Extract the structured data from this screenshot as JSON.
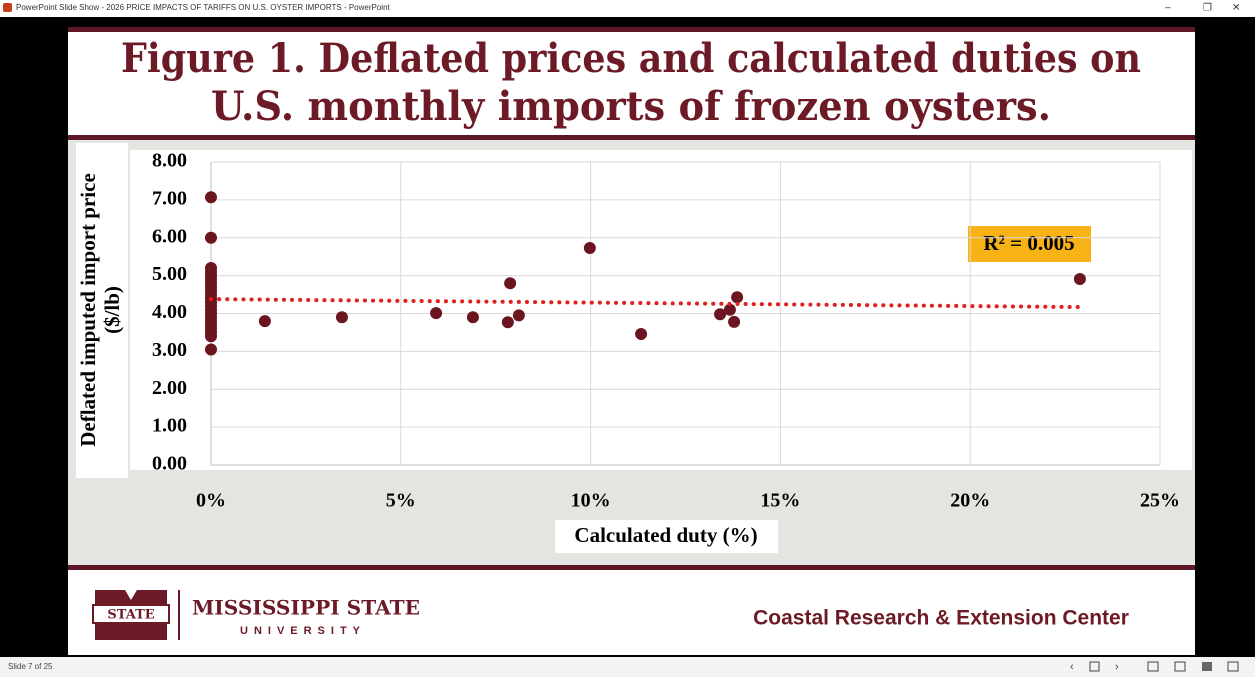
{
  "window": {
    "title": "PowerPoint Slide Show  -  2026 PRICE IMPACTS OF TARIFFS ON U.S. OYSTER IMPORTS  -  PowerPoint"
  },
  "slide": {
    "title_lines": [
      "Figure 1. Deflated prices and calculated duties on",
      "U.S. monthly imports of frozen oysters."
    ],
    "university": "MISSISSIPPI STATE",
    "university_sub": "UNIVERSITY",
    "logo_text": "STATE",
    "center": "Coastal Research & Extension Center"
  },
  "status": {
    "slide": "Slide 7 of 25"
  },
  "chart_data": {
    "type": "scatter",
    "x_label": "Calculated duty (%)",
    "y_label_lines": [
      "Deflated imputed import price",
      "($/lb)"
    ],
    "annotation": "R² = 0.005",
    "color": "#6b1520",
    "x": [
      0,
      0,
      0,
      0,
      0,
      0,
      0,
      0,
      0,
      0,
      0,
      0,
      0,
      0,
      0,
      0,
      0,
      0,
      0,
      0,
      0,
      0,
      1.42,
      3.45,
      5.93,
      6.9,
      7.82,
      7.88,
      8.11,
      9.98,
      11.33,
      13.41,
      13.67,
      13.78,
      13.86,
      22.89
    ],
    "values": [
      7.07,
      6.0,
      5.2,
      5.1,
      5.0,
      4.9,
      4.8,
      4.7,
      4.6,
      4.5,
      4.4,
      4.3,
      4.2,
      4.1,
      4.0,
      3.9,
      3.8,
      3.7,
      3.6,
      3.5,
      3.4,
      3.05,
      3.8,
      3.9,
      4.01,
      3.9,
      3.77,
      4.8,
      3.95,
      5.73,
      3.46,
      3.98,
      4.1,
      3.78,
      4.43,
      4.91
    ],
    "trendline": {
      "color": "#e0201e",
      "x": [
        0,
        22.89
      ],
      "values": [
        4.38,
        4.17
      ]
    },
    "xlim": [
      0,
      25
    ],
    "ylim": [
      0,
      8
    ],
    "xticks": [
      {
        "value": 0,
        "label": "0%"
      },
      {
        "value": 5,
        "label": "5%"
      },
      {
        "value": 10,
        "label": "10%"
      },
      {
        "value": 15,
        "label": "15%"
      },
      {
        "value": 20,
        "label": "20%"
      },
      {
        "value": 25,
        "label": "25%"
      }
    ],
    "yticks": [
      {
        "value": 0,
        "label": "0.00"
      },
      {
        "value": 1,
        "label": "1.00"
      },
      {
        "value": 2,
        "label": "2.00"
      },
      {
        "value": 3,
        "label": "3.00"
      },
      {
        "value": 4,
        "label": "4.00"
      },
      {
        "value": 5,
        "label": "5.00"
      },
      {
        "value": 6,
        "label": "6.00"
      },
      {
        "value": 7,
        "label": "7.00"
      },
      {
        "value": 8,
        "label": "8.00"
      }
    ],
    "grid": true
  }
}
